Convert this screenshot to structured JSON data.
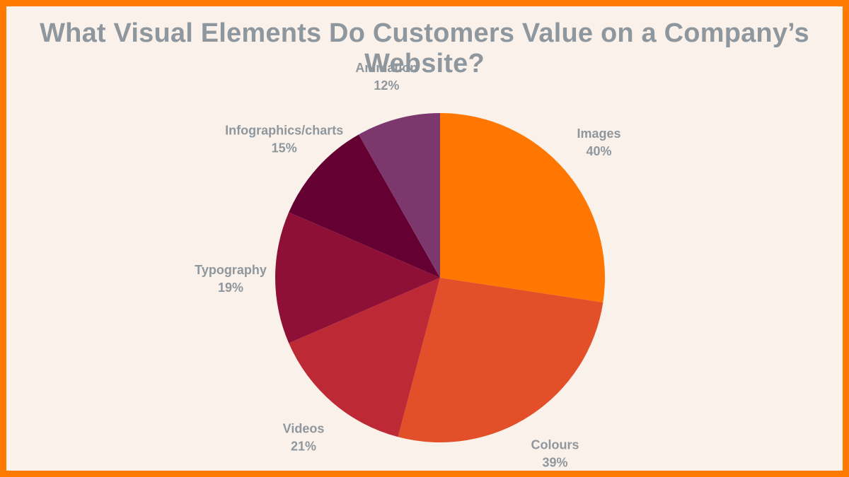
{
  "chart_data": {
    "type": "pie",
    "title": "What Visual Elements Do Customers Value on a Company’s Website?",
    "slices": [
      {
        "label": "Images",
        "value": 40,
        "value_label": "40%",
        "color": "#ff7700"
      },
      {
        "label": "Colours",
        "value": 39,
        "value_label": "39%",
        "color": "#e24f28"
      },
      {
        "label": "Videos",
        "value": 21,
        "value_label": "21%",
        "color": "#bd2a36"
      },
      {
        "label": "Typography",
        "value": 19,
        "value_label": "19%",
        "color": "#8f1036"
      },
      {
        "label": "Infographics/charts",
        "value": 15,
        "value_label": "15%",
        "color": "#650033"
      },
      {
        "label": "Animation",
        "value": 12,
        "value_label": "12%",
        "color": "#7c386d"
      }
    ]
  },
  "colors": {
    "border": "#ff7a00",
    "background": "#f9f1ea",
    "text": "#8f979e"
  }
}
